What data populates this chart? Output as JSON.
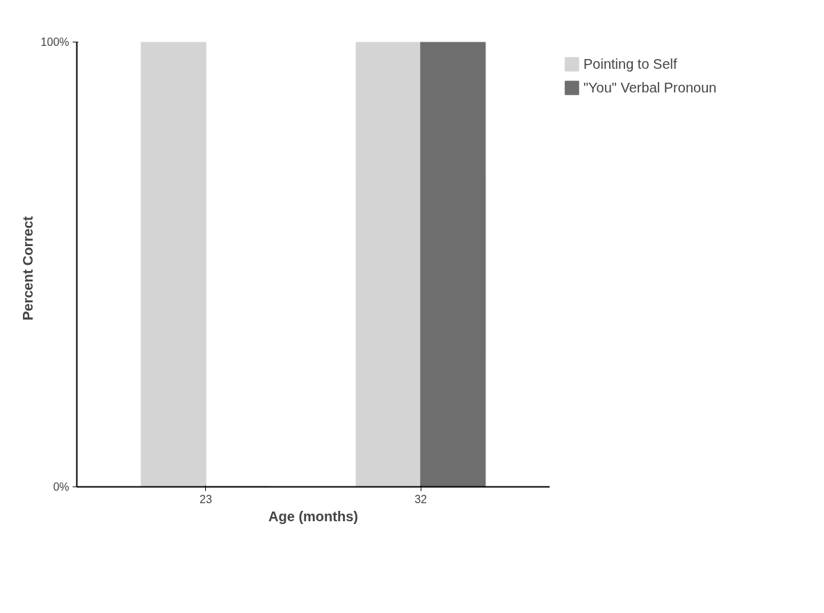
{
  "chart_data": {
    "type": "bar",
    "xlabel": "Age (months)",
    "ylabel": "Percent   Correct",
    "categories": [
      "23",
      "32"
    ],
    "series": [
      {
        "name": "Pointing to Self",
        "color": "#d4d4d4",
        "values": [
          100,
          100
        ]
      },
      {
        "name": "\"You\" Verbal Pronoun",
        "color": "#6e6e6e",
        "values": [
          0,
          100
        ]
      }
    ],
    "ylim": [
      0,
      100
    ],
    "yticks": [
      {
        "value": 0,
        "label": "0%"
      },
      {
        "value": 100,
        "label": "100%"
      }
    ],
    "legend": "top right"
  }
}
